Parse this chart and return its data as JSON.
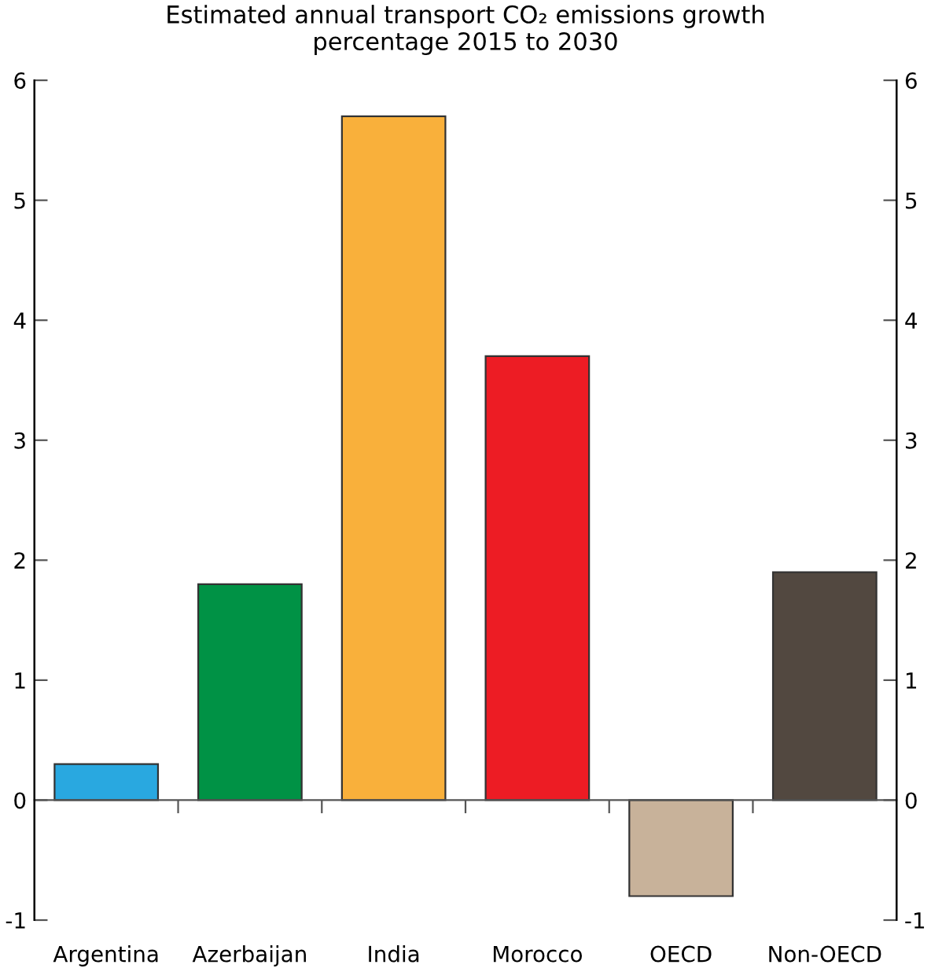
{
  "chart_data": {
    "type": "bar",
    "title": "Estimated annual transport CO₂ emissions growth\npercentage 2015 to 2030",
    "categories": [
      "Argentina",
      "Azerbaijan",
      "India",
      "Morocco",
      "OECD",
      "Non-OECD"
    ],
    "values": [
      0.3,
      1.8,
      5.7,
      3.7,
      -0.8,
      1.9
    ],
    "colors": [
      "#29a8e0",
      "#009245",
      "#f9b03b",
      "#ed1c24",
      "#c8b29a",
      "#524840"
    ],
    "ylim": [
      -1,
      6
    ],
    "yticks": [
      -1,
      0,
      1,
      2,
      3,
      4,
      5,
      6
    ],
    "y2lim": [
      -1,
      6
    ],
    "y2ticks": [
      -1,
      0,
      1,
      2,
      3,
      4,
      5,
      6
    ],
    "legend": false
  }
}
